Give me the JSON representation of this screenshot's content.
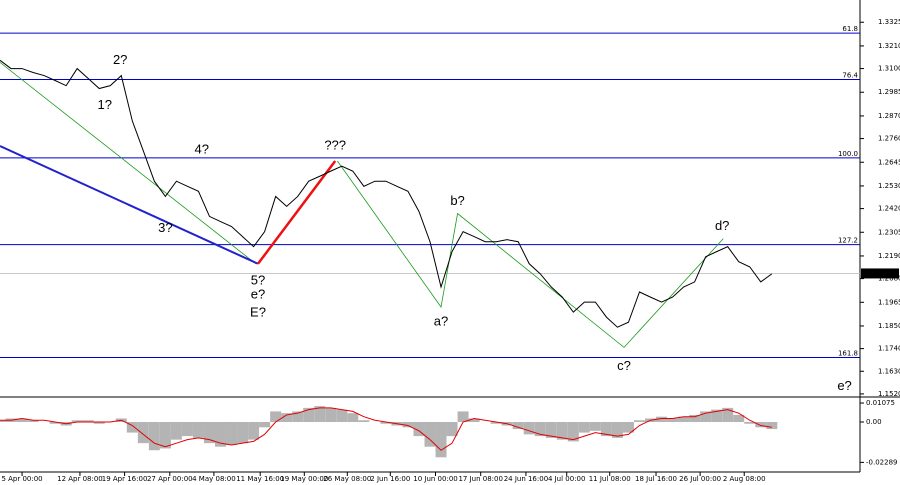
{
  "chart_data": [
    {
      "type": "line",
      "color": "#000000",
      "xlim": [
        0,
        78
      ],
      "xticks": [
        {
          "value": 2,
          "label": "5 Apr 00:00"
        },
        {
          "value": 7.25,
          "label": "12 Apr 08:00"
        },
        {
          "value": 11.3,
          "label": "19 Apr 16:00"
        },
        {
          "value": 15.4,
          "label": "27 Apr 00:00"
        },
        {
          "value": 19.4,
          "label": "4 May 08:00"
        },
        {
          "value": 23.6,
          "label": "11 May 16:00"
        },
        {
          "value": 27.6,
          "label": "19 May 00:00"
        },
        {
          "value": 31.5,
          "label": "26 May 08:00"
        },
        {
          "value": 35.4,
          "label": "2 Jun 16:00"
        },
        {
          "value": 39.5,
          "label": "10 Jun 00:00"
        },
        {
          "value": 43.6,
          "label": "17 Jun 08:00"
        },
        {
          "value": 47.7,
          "label": "24 Jun 16:00"
        },
        {
          "value": 51.4,
          "label": "4 Jul 00:00"
        },
        {
          "value": 55.3,
          "label": "11 Jul 08:00"
        },
        {
          "value": 59.5,
          "label": "18 Jul 16:00"
        },
        {
          "value": 63.5,
          "label": "26 Jul 00:00"
        },
        {
          "value": 67.5,
          "label": "2 Aug 08:00"
        }
      ],
      "ylim": [
        1.1505,
        1.3433
      ],
      "yticks": [
        {
          "value": 1.3325,
          "label": "1.3325"
        },
        {
          "value": 1.321,
          "label": "1.3210"
        },
        {
          "value": 1.31,
          "label": "1.3100"
        },
        {
          "value": 1.2985,
          "label": "1.2985"
        },
        {
          "value": 1.287,
          "label": "1.2870"
        },
        {
          "value": 1.276,
          "label": "1.2760"
        },
        {
          "value": 1.2645,
          "label": "1.2645"
        },
        {
          "value": 1.253,
          "label": "1.2530"
        },
        {
          "value": 1.242,
          "label": "1.2420"
        },
        {
          "value": 1.2305,
          "label": "1.2305"
        },
        {
          "value": 1.219,
          "label": "1.2190"
        },
        {
          "value": 1.208,
          "label": "1.2080"
        },
        {
          "value": 1.1965,
          "label": "1.1965"
        },
        {
          "value": 1.185,
          "label": "1.1850"
        },
        {
          "value": 1.174,
          "label": "1.1740"
        },
        {
          "value": 1.163,
          "label": "1.1630"
        },
        {
          "value": 1.152,
          "label": "1.1520"
        }
      ],
      "values": [
        1.314,
        1.31,
        1.31,
        1.3081,
        1.3066,
        1.3042,
        1.3017,
        1.31,
        1.3052,
        1.3003,
        1.3017,
        1.3066,
        1.2846,
        1.27,
        1.2553,
        1.2479,
        1.2553,
        1.2528,
        1.2504,
        1.2382,
        1.2357,
        1.2333,
        1.2284,
        1.2235,
        1.2308,
        1.2479,
        1.2431,
        1.2479,
        1.2553,
        1.2577,
        1.2602,
        1.2626,
        1.2602,
        1.2528,
        1.2553,
        1.2553,
        1.2528,
        1.2504,
        1.2406,
        1.2259,
        1.2039,
        1.2211,
        1.2308,
        1.2284,
        1.2259,
        1.2259,
        1.2269,
        1.2259,
        1.2152,
        1.2103,
        1.2039,
        1.199,
        1.1917,
        1.1966,
        1.1966,
        1.1893,
        1.1844,
        1.1868,
        1.2015,
        1.199,
        1.1966,
        1.199,
        1.2039,
        1.2064,
        1.2186,
        1.2211,
        1.2235,
        1.2162,
        1.2137,
        1.2064,
        1.2103
      ],
      "last_price": {
        "value": 1.2105,
        "label": "1.2105"
      },
      "levels": [
        {
          "label": "61.8",
          "price": 1.3272
        },
        {
          "label": "76.4",
          "price": 1.3047
        },
        {
          "label": "100.0",
          "price": 1.2666
        },
        {
          "label": "127.2",
          "price": 1.2245
        },
        {
          "label": "161.8",
          "price": 1.1697
        }
      ],
      "level_color": "#0000cc",
      "wave_lines": [
        {
          "color": "#1a9a1a",
          "width": 0.8,
          "x": [
            0,
            23.2
          ],
          "y": [
            1.313,
            1.2152
          ]
        },
        {
          "color": "#2222cc",
          "width": 2,
          "x": [
            0,
            23.4
          ],
          "y": [
            1.2724,
            1.2152
          ]
        },
        {
          "color": "#ee1111",
          "width": 2.5,
          "x": [
            23.4,
            30.4
          ],
          "y": [
            1.2152,
            1.2651
          ]
        },
        {
          "color": "#1a9a1a",
          "width": 0.8,
          "x": [
            30.6,
            40,
            41.5,
            56.6,
            65.6
          ],
          "y": [
            1.2651,
            1.1942,
            1.2396,
            1.1746,
            1.2274
          ]
        }
      ],
      "annotations": [
        {
          "text": "2?",
          "x": 10.9,
          "y": 1.314,
          "color": "#ee1111"
        },
        {
          "text": "1?",
          "x": 9.5,
          "y": 1.292,
          "color": "#ee1111"
        },
        {
          "text": "4?",
          "x": 18.3,
          "y": 1.2704,
          "color": "#ee1111"
        },
        {
          "text": "3?",
          "x": 15,
          "y": 1.2323,
          "color": "#ee1111"
        },
        {
          "text": "5?",
          "x": 23.4,
          "y": 1.2069,
          "color": "#ee1111"
        },
        {
          "text": "e?",
          "x": 23.4,
          "y": 1.2,
          "color": "#1a8a1a"
        },
        {
          "text": "E?",
          "x": 23.4,
          "y": 1.1912,
          "color": "#2222cc"
        },
        {
          "text": "???",
          "x": 30.4,
          "y": 1.2724,
          "color": "#ee1111"
        },
        {
          "text": "b?",
          "x": 41.5,
          "y": 1.2455,
          "color": "#1a8a1a"
        },
        {
          "text": "a?",
          "x": 40,
          "y": 1.1868,
          "color": "#1a8a1a"
        },
        {
          "text": "d?",
          "x": 65.5,
          "y": 1.2333,
          "color": "#1a8a1a"
        },
        {
          "text": "c?",
          "x": 56.6,
          "y": 1.1653,
          "color": "#1a8a1a"
        },
        {
          "text": "e?",
          "x": 76.6,
          "y": 1.1555,
          "color": "#1a8a1a"
        }
      ]
    },
    {
      "type": "bar",
      "xlim": [
        0,
        78
      ],
      "ylim": [
        -0.0272,
        0.0136
      ],
      "yticks": [
        0.01075,
        {
          "value": 0,
          "label": "0.00"
        },
        -0.02289
      ],
      "series": [
        {
          "kind": "bar",
          "color": "#b4b4b4",
          "values": [
            0.001,
            0.002,
            0.002,
            0.001,
            0,
            -0.001,
            -0.002,
            0.001,
            0.001,
            -0.001,
            0,
            0.002,
            -0.006,
            -0.012,
            -0.016,
            -0.015,
            -0.01,
            -0.008,
            -0.009,
            -0.012,
            -0.014,
            -0.013,
            -0.012,
            -0.01,
            -0.003,
            0.006,
            0.005,
            0.006,
            0.008,
            0.009,
            0.008,
            0.007,
            0.005,
            0.001,
            0,
            -0.001,
            -0.002,
            -0.003,
            -0.008,
            -0.014,
            -0.02,
            -0.008,
            0.006,
            0.002,
            0,
            -0.001,
            -0.002,
            -0.004,
            -0.007,
            -0.008,
            -0.009,
            -0.01,
            -0.011,
            -0.006,
            -0.005,
            -0.008,
            -0.009,
            -0.006,
            0.001,
            0.002,
            0.003,
            0.002,
            0.003,
            0.004,
            0.006,
            0.007,
            0.008,
            0.004,
            -0.001,
            -0.003,
            -0.004
          ]
        },
        {
          "kind": "line",
          "color": "#e00000",
          "values": [
            0.001,
            0.001,
            0.002,
            0.001,
            0.001,
            0,
            -0.001,
            0,
            0,
            0,
            0,
            0.001,
            -0.002,
            -0.007,
            -0.012,
            -0.014,
            -0.012,
            -0.01,
            -0.009,
            -0.01,
            -0.012,
            -0.013,
            -0.012,
            -0.011,
            -0.007,
            0,
            0.004,
            0.005,
            0.007,
            0.008,
            0.008,
            0.007,
            0.006,
            0.003,
            0.001,
            0,
            -0.001,
            -0.002,
            -0.005,
            -0.01,
            -0.016,
            -0.012,
            0,
            0.002,
            0.001,
            0,
            -0.001,
            -0.003,
            -0.005,
            -0.007,
            -0.008,
            -0.009,
            -0.01,
            -0.008,
            -0.006,
            -0.007,
            -0.008,
            -0.007,
            -0.002,
            0.001,
            0.002,
            0.002,
            0.003,
            0.003,
            0.005,
            0.006,
            0.007,
            0.005,
            0.001,
            -0.002,
            -0.003
          ]
        }
      ]
    }
  ]
}
